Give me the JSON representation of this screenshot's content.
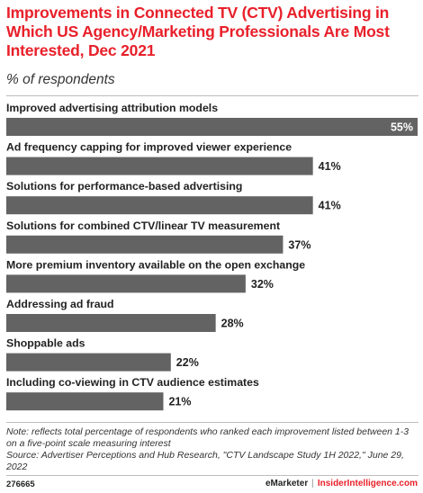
{
  "header": {
    "title": "Improvements in Connected TV (CTV) Advertising in Which US Agency/Marketing Professionals Are Most Interested, Dec 2021",
    "subtitle": "% of respondents"
  },
  "chart_data": {
    "type": "bar",
    "orientation": "horizontal",
    "categories": [
      "Improved advertising attribution models",
      "Ad frequency capping for improved viewer experience",
      "Solutions for performance-based advertising",
      "Solutions for combined CTV/linear TV measurement",
      "More premium inventory available on the open exchange",
      "Addressing ad fraud",
      "Shoppable ads",
      "Including co-viewing in CTV audience estimates"
    ],
    "values": [
      55,
      41,
      41,
      37,
      32,
      28,
      22,
      21
    ],
    "data_labels": [
      "55%",
      "41%",
      "41%",
      "37%",
      "32%",
      "28%",
      "22%",
      "21%"
    ],
    "xlim": [
      0,
      55
    ],
    "bar_color": "#636363",
    "grid": false
  },
  "footer": {
    "note": "Note: reflects total percentage of respondents who ranked each improvement listed between 1-3 on a five-point scale measuring interest",
    "source": "Source: Advertiser Perceptions and Hub Research, \"CTV Landscape Study 1H 2022,\" June 29, 2022",
    "chart_id": "276665",
    "brand_a": "eMarketer",
    "separator": "|",
    "brand_b": "InsiderIntelligence.com"
  },
  "colors": {
    "accent": "#e8202a",
    "bar": "#636363",
    "text": "#222222",
    "rule": "#bdbdbd"
  }
}
